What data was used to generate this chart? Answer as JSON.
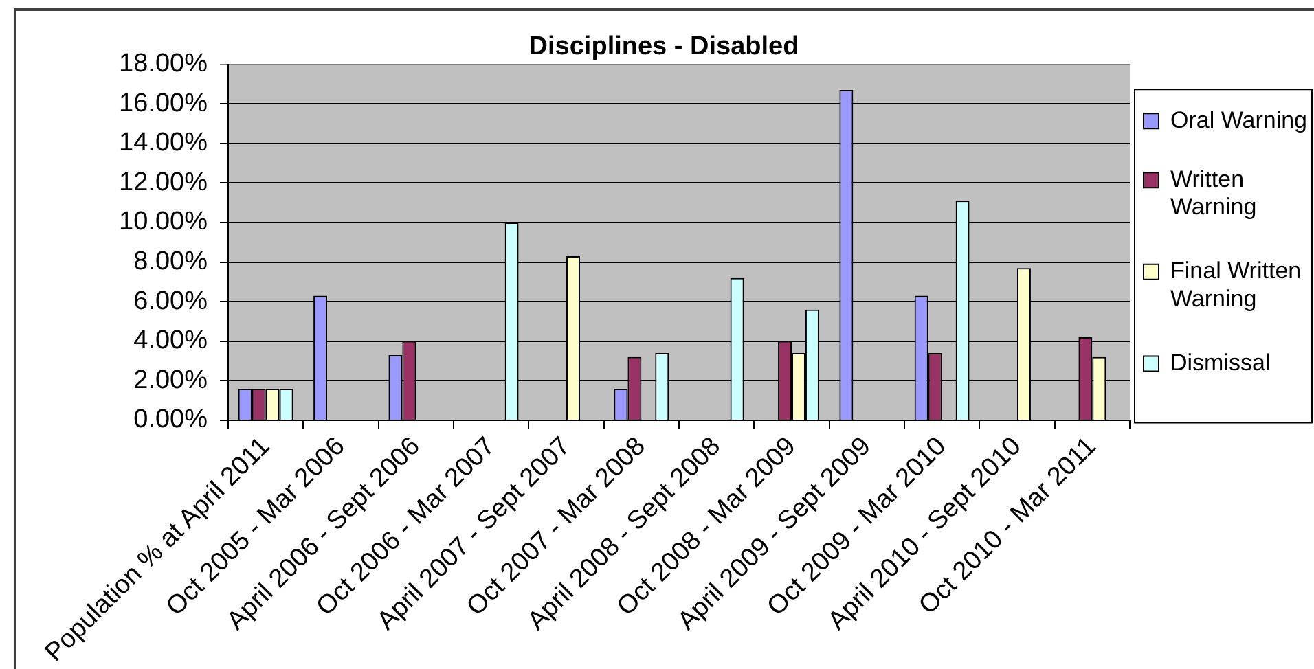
{
  "chart_data": {
    "type": "bar",
    "title": "Disciplines - Disabled",
    "categories": [
      "Population % at April 2011",
      "Oct 2005 - Mar 2006",
      "April 2006 - Sept 2006",
      "Oct 2006 - Mar 2007",
      "April 2007 - Sept 2007",
      "Oct 2007 - Mar 2008",
      "April 2008 - Sept 2008",
      "Oct 2008 - Mar 2009",
      "April 2009 - Sept 2009",
      "Oct 2009 - Mar 2010",
      "April 2010 - Sept 2010",
      "Oct 2010 - Mar 2011"
    ],
    "series": [
      {
        "name": "Oral Warning",
        "color": "#9999ff",
        "values": [
          1.6,
          6.3,
          3.3,
          null,
          null,
          1.6,
          null,
          null,
          16.7,
          6.3,
          null,
          null
        ]
      },
      {
        "name": "Written Warning",
        "color": "#993366",
        "values": [
          1.6,
          null,
          4.0,
          null,
          null,
          3.2,
          null,
          4.0,
          null,
          3.4,
          null,
          4.2
        ]
      },
      {
        "name": "Final Written Warning",
        "color": "#ffffcc",
        "values": [
          1.6,
          null,
          null,
          null,
          8.3,
          null,
          null,
          3.4,
          null,
          null,
          7.7,
          3.2
        ]
      },
      {
        "name": "Dismissal",
        "color": "#ccffff",
        "values": [
          1.6,
          null,
          null,
          10.0,
          null,
          3.4,
          7.2,
          5.6,
          null,
          11.1,
          null,
          null
        ]
      }
    ],
    "ylim": [
      0,
      18
    ],
    "yticks": [
      {
        "value": 0,
        "label": "0.00%"
      },
      {
        "value": 2,
        "label": "2.00%"
      },
      {
        "value": 4,
        "label": "4.00%"
      },
      {
        "value": 6,
        "label": "6.00%"
      },
      {
        "value": 8,
        "label": "8.00%"
      },
      {
        "value": 10,
        "label": "10.00%"
      },
      {
        "value": 12,
        "label": "12.00%"
      },
      {
        "value": 14,
        "label": "14.00%"
      },
      {
        "value": 16,
        "label": "16.00%"
      },
      {
        "value": 18,
        "label": "18.00%"
      }
    ],
    "grid": "y",
    "legend": "right"
  }
}
